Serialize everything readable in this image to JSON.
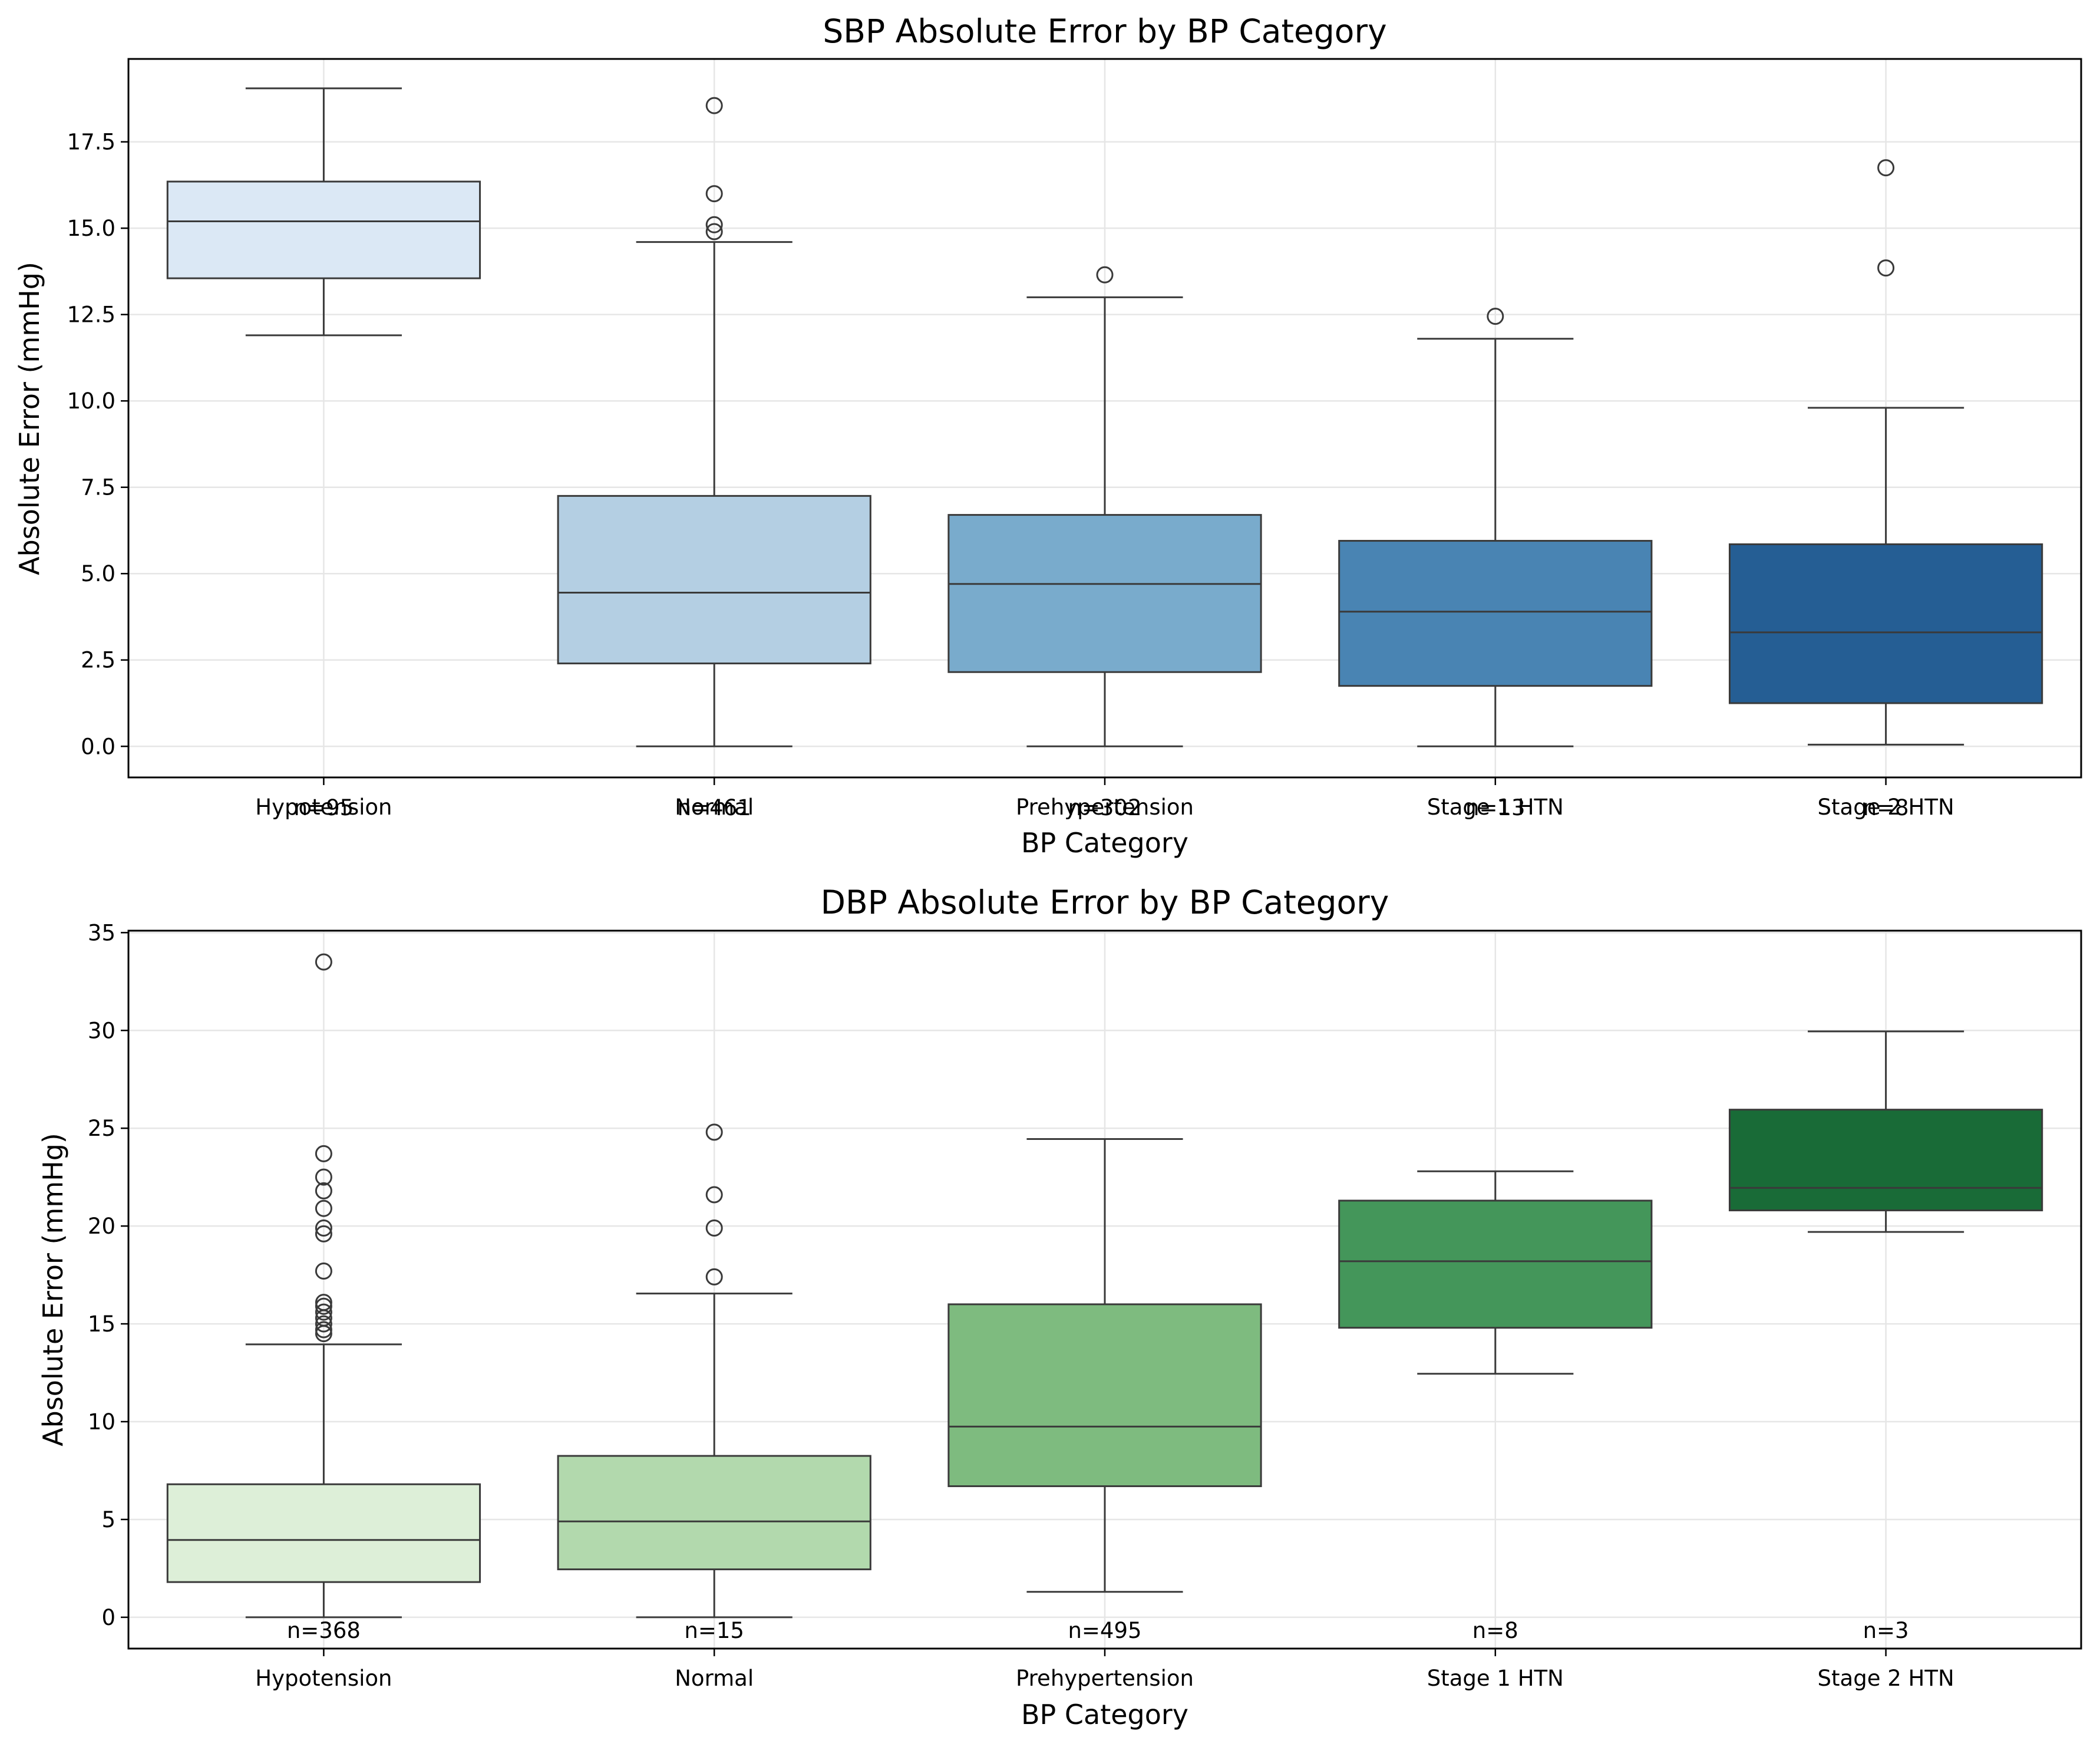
{
  "chart_data": [
    {
      "type": "boxplot",
      "title": "SBP Absolute Error by BP Category",
      "xlabel": "BP Category",
      "ylabel": "Absolute Error (mmHg)",
      "ylim": [
        -0.9,
        19.9
      ],
      "yticks": [
        0.0,
        2.5,
        5.0,
        7.5,
        10.0,
        12.5,
        15.0,
        17.5
      ],
      "ytick_labels": [
        "0.0",
        "2.5",
        "5.0",
        "7.5",
        "10.0",
        "12.5",
        "15.0",
        "17.5"
      ],
      "grid": true,
      "categories": [
        "Hypotension",
        "Normal",
        "Prehypertension",
        "Stage 1 HTN",
        "Stage 2 HTN"
      ],
      "counts": [
        "n=95",
        "n=461",
        "n=302",
        "n=13",
        "n=8"
      ],
      "colors": [
        "#dbe8f5",
        "#b4cfe3",
        "#79abcc",
        "#4984b3",
        "#255e94"
      ],
      "boxes": [
        {
          "whislo": 11.9,
          "q1": 13.55,
          "med": 15.2,
          "q3": 16.35,
          "whishi": 19.05,
          "fliers": []
        },
        {
          "whislo": 0.0,
          "q1": 2.4,
          "med": 4.45,
          "q3": 7.25,
          "whishi": 14.6,
          "fliers": [
            14.9,
            15.1,
            16.0,
            18.55
          ]
        },
        {
          "whislo": 0.0,
          "q1": 2.15,
          "med": 4.7,
          "q3": 6.7,
          "whishi": 13.0,
          "fliers": [
            13.65
          ]
        },
        {
          "whislo": 0.0,
          "q1": 1.75,
          "med": 3.9,
          "q3": 5.95,
          "whishi": 11.8,
          "fliers": [
            12.45
          ]
        },
        {
          "whislo": 0.05,
          "q1": 1.25,
          "med": 3.3,
          "q3": 5.85,
          "whishi": 9.8,
          "fliers": [
            13.85,
            16.75
          ]
        }
      ]
    },
    {
      "type": "boxplot",
      "title": "DBP Absolute Error by BP Category",
      "xlabel": "BP Category",
      "ylabel": "Absolute Error (mmHg)",
      "ylim": [
        -1.6,
        35.1
      ],
      "yticks": [
        0,
        5,
        10,
        15,
        20,
        25,
        30,
        35
      ],
      "ytick_labels": [
        "0",
        "5",
        "10",
        "15",
        "20",
        "25",
        "30",
        "35"
      ],
      "grid": true,
      "categories": [
        "Hypotension",
        "Normal",
        "Prehypertension",
        "Stage 1 HTN",
        "Stage 2 HTN"
      ],
      "counts": [
        "n=368",
        "n=15",
        "n=495",
        "n=8",
        "n=3"
      ],
      "colors": [
        "#ddefd8",
        "#b2d9ad",
        "#7ebb7f",
        "#44965a",
        "#196b37"
      ],
      "boxes": [
        {
          "whislo": 0.0,
          "q1": 1.8,
          "med": 3.95,
          "q3": 6.8,
          "whishi": 13.95,
          "fliers": [
            14.5,
            14.7,
            15.0,
            15.3,
            15.6,
            15.9,
            16.1,
            17.7,
            19.6,
            19.9,
            20.9,
            21.8,
            22.5,
            23.7,
            33.5
          ]
        },
        {
          "whislo": 0.0,
          "q1": 2.45,
          "med": 4.9,
          "q3": 8.25,
          "whishi": 16.55,
          "fliers": [
            17.4,
            19.9,
            21.6,
            24.8
          ]
        },
        {
          "whislo": 1.3,
          "q1": 6.7,
          "med": 9.75,
          "q3": 16.0,
          "whishi": 24.45,
          "fliers": []
        },
        {
          "whislo": 12.45,
          "q1": 14.8,
          "med": 18.2,
          "q3": 21.3,
          "whishi": 22.8,
          "fliers": []
        },
        {
          "whislo": 19.7,
          "q1": 20.8,
          "med": 21.95,
          "q3": 25.95,
          "whishi": 29.95,
          "fliers": []
        }
      ]
    }
  ]
}
